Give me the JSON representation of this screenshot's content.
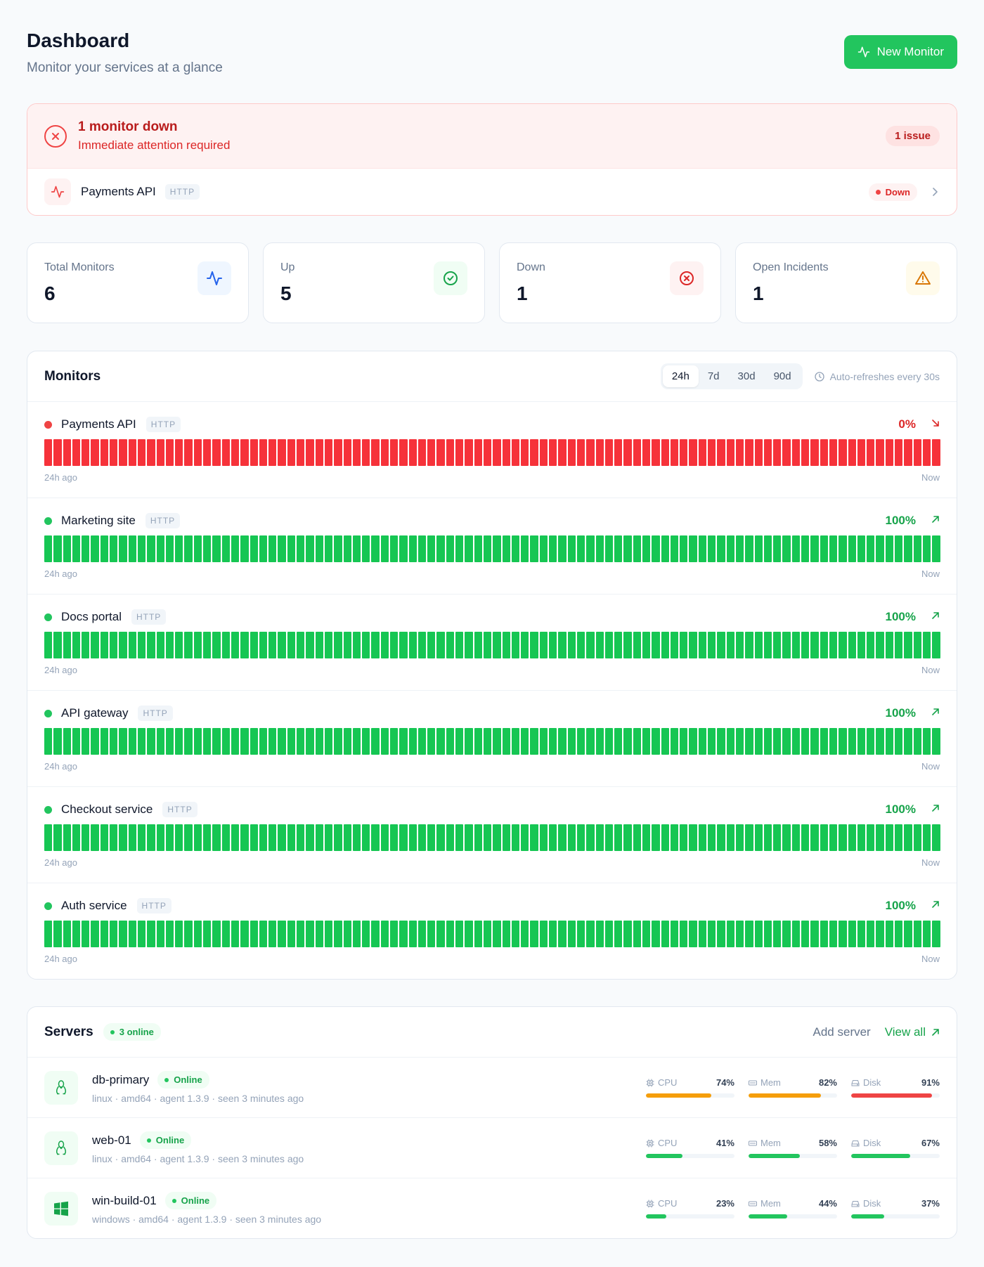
{
  "header": {
    "title": "Dashboard",
    "subtitle": "Monitor your services at a glance",
    "new_monitor_label": "New Monitor"
  },
  "alert": {
    "title": "1 monitor down",
    "subtitle": "Immediate attention required",
    "issue_badge": "1 issue",
    "item": {
      "name": "Payments API",
      "type": "HTTP",
      "status": "Down"
    }
  },
  "stats": [
    {
      "label": "Total Monitors",
      "value": "6",
      "icon": "activity-icon"
    },
    {
      "label": "Up",
      "value": "5",
      "icon": "check-circle-icon"
    },
    {
      "label": "Down",
      "value": "1",
      "icon": "x-circle-icon"
    },
    {
      "label": "Open Incidents",
      "value": "1",
      "icon": "warning-icon"
    }
  ],
  "monitors_card": {
    "title": "Monitors",
    "ranges": [
      "24h",
      "7d",
      "30d",
      "90d"
    ],
    "active_range": "24h",
    "refresh_text": "Auto-refreshes every 30s",
    "bars_per_row": 96,
    "footer_start": "24h ago",
    "footer_end": "Now",
    "monitors": [
      {
        "name": "Payments API",
        "type": "HTTP",
        "uptime": "0%",
        "status": "down"
      },
      {
        "name": "Marketing site",
        "type": "HTTP",
        "uptime": "100%",
        "status": "up"
      },
      {
        "name": "Docs portal",
        "type": "HTTP",
        "uptime": "100%",
        "status": "up"
      },
      {
        "name": "API gateway",
        "type": "HTTP",
        "uptime": "100%",
        "status": "up"
      },
      {
        "name": "Checkout service",
        "type": "HTTP",
        "uptime": "100%",
        "status": "up"
      },
      {
        "name": "Auth service",
        "type": "HTTP",
        "uptime": "100%",
        "status": "up"
      }
    ]
  },
  "servers_card": {
    "title": "Servers",
    "online_badge": "3 online",
    "add_label": "Add server",
    "view_all_label": "View all",
    "metric_labels": {
      "cpu": "CPU",
      "mem": "Mem",
      "disk": "Disk"
    },
    "servers": [
      {
        "name": "db-primary",
        "status": "Online",
        "os_icon": "linux-icon",
        "meta": "linux · amd64 · agent 1.3.9 · seen 3 minutes ago",
        "cpu": 74,
        "mem": 82,
        "disk": 91
      },
      {
        "name": "web-01",
        "status": "Online",
        "os_icon": "linux-icon",
        "meta": "linux · amd64 · agent 1.3.9 · seen 3 minutes ago",
        "cpu": 41,
        "mem": 58,
        "disk": 67
      },
      {
        "name": "win-build-01",
        "status": "Online",
        "os_icon": "windows-icon",
        "meta": "windows · amd64 · agent 1.3.9 · seen 3 minutes ago",
        "cpu": 23,
        "mem": 44,
        "disk": 37
      }
    ]
  },
  "colors": {
    "up": "#22c55e",
    "down": "#ef4444",
    "bar_up": "#16c653",
    "bar_down": "#f6323a",
    "warn": "#f59e0b",
    "blue": "#2563eb"
  }
}
